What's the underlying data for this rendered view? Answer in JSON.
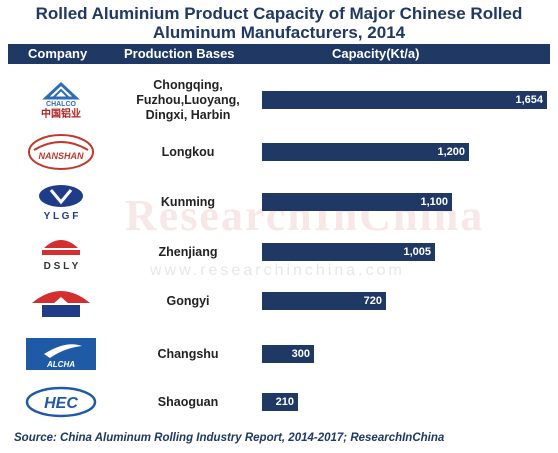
{
  "title_line1": "Rolled Aluminium Product Capacity of Major Chinese Rolled",
  "title_line2": "Aluminum Manufacturers, 2014",
  "headers": {
    "company": "Company",
    "bases": "Production Bases",
    "capacity": "Capacity(Kt/a)"
  },
  "watermark": "ResearchInChina",
  "watermark_url": "www.researchinchina.com",
  "source": "Source: China Aluminum Rolling Industry Report, 2014-2017; ResearchInChina",
  "logos": [
    {
      "icon": "chalco-logo",
      "text": "CHALCO",
      "sub": "中国铝业"
    },
    {
      "icon": "nanshan-logo",
      "text": "NANSHAN"
    },
    {
      "icon": "ylgf-logo",
      "text": "YLGF"
    },
    {
      "icon": "dsly-logo",
      "text": "DSLY"
    },
    {
      "icon": "gongyi-logo"
    },
    {
      "icon": "alcha-logo",
      "text": "ALCHA"
    },
    {
      "icon": "hec-logo",
      "text": "HEC"
    }
  ],
  "chart_data": {
    "type": "bar",
    "orientation": "horizontal",
    "title": "Rolled Aluminium Product Capacity of Major Chinese Rolled Aluminum Manufacturers, 2014",
    "categories": [
      "Chongqing, Fuzhou,Luoyang, Dingxi, Harbin",
      "Longkou",
      "Kunming",
      "Zhenjiang",
      "Gongyi",
      "Changshu",
      "Shaoguan"
    ],
    "category_lines": [
      [
        "Chongqing,",
        "Fuzhou,Luoyang,",
        "Dingxi, Harbin"
      ],
      [
        "Longkou"
      ],
      [
        "Kunming"
      ],
      [
        "Zhenjiang"
      ],
      [
        "Gongyi"
      ],
      [
        "Changshu"
      ],
      [
        "Shaoguan"
      ]
    ],
    "values": [
      1654,
      1200,
      1100,
      1005,
      720,
      300,
      210
    ],
    "value_labels": [
      "1,654",
      "1,200",
      "1,100",
      "1,005",
      "720",
      "300",
      "210"
    ],
    "ylabel": "Capacity(Kt/a)",
    "xlim": [
      0,
      1654
    ],
    "colors": {
      "bar": "#1f3864",
      "title": "#1f3864",
      "header_bg": "#1f3864"
    }
  }
}
